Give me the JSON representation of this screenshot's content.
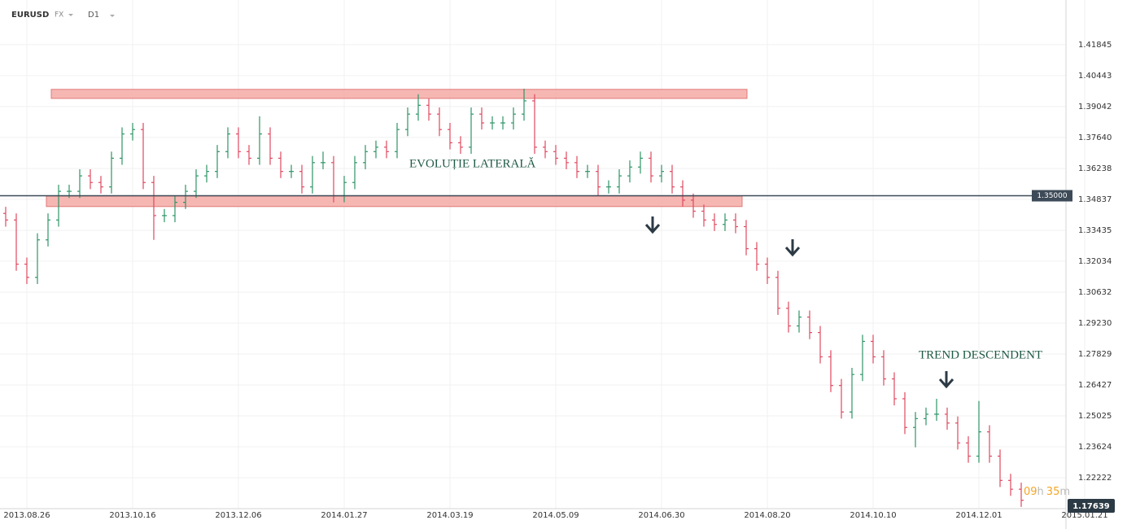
{
  "chart_data": {
    "type": "ohlc",
    "symbol": "EURUSD",
    "market": "FX",
    "timeframe": "D1",
    "categories": [
      null,
      null,
      "2013.08.26",
      null,
      null,
      null,
      null,
      null,
      null,
      null,
      null,
      null,
      "2013.10.16",
      null,
      null,
      null,
      null,
      null,
      null,
      null,
      null,
      null,
      "2013.12.06",
      null,
      null,
      null,
      null,
      null,
      null,
      null,
      null,
      null,
      "2014.01.27",
      null,
      null,
      null,
      null,
      null,
      null,
      null,
      null,
      null,
      "2014.03.19",
      null,
      null,
      null,
      null,
      null,
      null,
      null,
      null,
      null,
      "2014.05.09",
      null,
      null,
      null,
      null,
      null,
      null,
      null,
      null,
      null,
      "2014.06.30",
      null,
      null,
      null,
      null,
      null,
      null,
      null,
      null,
      null,
      "2014.08.20",
      null,
      null,
      null,
      null,
      null,
      null,
      null,
      null,
      null,
      "2014.10.10",
      null,
      null,
      null,
      null,
      null,
      null,
      null,
      null,
      null,
      "2014.12.01",
      null,
      null,
      null,
      null,
      null,
      null,
      null,
      null,
      null,
      "2015.01.21"
    ],
    "open": [
      1.342,
      1.339,
      1.319,
      1.313,
      1.33,
      1.339,
      1.352,
      1.352,
      1.359,
      1.356,
      1.354,
      1.367,
      1.378,
      1.38,
      1.356,
      1.341,
      1.341,
      1.347,
      1.352,
      1.359,
      1.361,
      1.37,
      1.378,
      1.37,
      1.367,
      1.378,
      1.367,
      1.361,
      1.361,
      1.354,
      1.365,
      1.365,
      1.35,
      1.356,
      1.365,
      1.37,
      1.372,
      1.37,
      1.38,
      1.387,
      1.391,
      1.387,
      1.38,
      1.374,
      1.372,
      1.387,
      1.383,
      1.383,
      1.383,
      1.387,
      1.393,
      1.372,
      1.37,
      1.367,
      1.365,
      1.361,
      1.361,
      1.354,
      1.354,
      1.359,
      1.363,
      1.367,
      1.359,
      1.361,
      1.354,
      1.348,
      1.343,
      1.339,
      1.337,
      1.339,
      1.336,
      1.326,
      1.319,
      1.313,
      1.299,
      1.291,
      1.295,
      1.288,
      1.277,
      1.264,
      1.252,
      1.269,
      1.284,
      1.277,
      1.267,
      1.258,
      1.245,
      1.249,
      1.251,
      1.251,
      1.247,
      1.238,
      1.232,
      1.243,
      1.232,
      1.221,
      1.217,
      null,
      null,
      null,
      null,
      null,
      null
    ],
    "high": [
      1.345,
      1.342,
      1.322,
      1.333,
      1.342,
      1.355,
      1.355,
      1.362,
      1.362,
      1.359,
      1.37,
      1.381,
      1.383,
      1.383,
      1.359,
      1.344,
      1.35,
      1.355,
      1.362,
      1.364,
      1.373,
      1.381,
      1.381,
      1.373,
      1.386,
      1.381,
      1.37,
      1.364,
      1.364,
      1.368,
      1.37,
      1.368,
      1.359,
      1.368,
      1.373,
      1.375,
      1.375,
      1.383,
      1.39,
      1.396,
      1.394,
      1.39,
      1.383,
      1.377,
      1.39,
      1.39,
      1.386,
      1.386,
      1.39,
      1.3985,
      1.396,
      1.375,
      1.373,
      1.37,
      1.368,
      1.364,
      1.364,
      1.357,
      1.362,
      1.366,
      1.37,
      1.37,
      1.364,
      1.364,
      1.357,
      1.351,
      1.346,
      1.342,
      1.342,
      1.342,
      1.339,
      1.329,
      1.322,
      1.316,
      1.302,
      1.298,
      1.298,
      1.291,
      1.28,
      1.267,
      1.272,
      1.287,
      1.287,
      1.28,
      1.27,
      1.261,
      1.252,
      1.254,
      1.258,
      1.254,
      1.25,
      1.241,
      1.257,
      1.246,
      1.235,
      1.224,
      1.22,
      null,
      null,
      null,
      null,
      null,
      null
    ],
    "low": [
      1.336,
      1.316,
      1.31,
      1.31,
      1.327,
      1.336,
      1.349,
      1.349,
      1.353,
      1.351,
      1.351,
      1.364,
      1.375,
      1.353,
      1.33,
      1.338,
      1.338,
      1.344,
      1.349,
      1.356,
      1.358,
      1.367,
      1.367,
      1.364,
      1.364,
      1.364,
      1.358,
      1.358,
      1.351,
      1.351,
      1.362,
      1.347,
      1.347,
      1.353,
      1.362,
      1.367,
      1.367,
      1.367,
      1.377,
      1.384,
      1.384,
      1.377,
      1.371,
      1.369,
      1.369,
      1.38,
      1.38,
      1.38,
      1.38,
      1.384,
      1.369,
      1.367,
      1.364,
      1.362,
      1.358,
      1.358,
      1.35,
      1.351,
      1.351,
      1.356,
      1.36,
      1.356,
      1.356,
      1.351,
      1.345,
      1.34,
      1.336,
      1.334,
      1.334,
      1.333,
      1.323,
      1.316,
      1.31,
      1.296,
      1.288,
      1.288,
      1.285,
      1.274,
      1.261,
      1.249,
      1.249,
      1.266,
      1.274,
      1.264,
      1.255,
      1.242,
      1.236,
      1.246,
      1.248,
      1.244,
      1.235,
      1.229,
      1.229,
      1.229,
      1.218,
      1.214,
      1.209,
      null,
      null,
      null,
      null,
      null,
      null
    ],
    "close": [
      1.339,
      1.319,
      1.313,
      1.33,
      1.339,
      1.352,
      1.352,
      1.359,
      1.356,
      1.354,
      1.367,
      1.378,
      1.38,
      1.356,
      1.341,
      1.341,
      1.347,
      1.352,
      1.359,
      1.361,
      1.37,
      1.378,
      1.37,
      1.367,
      1.378,
      1.367,
      1.361,
      1.361,
      1.354,
      1.365,
      1.365,
      1.35,
      1.356,
      1.365,
      1.37,
      1.372,
      1.37,
      1.38,
      1.387,
      1.391,
      1.387,
      1.38,
      1.374,
      1.372,
      1.387,
      1.383,
      1.383,
      1.383,
      1.387,
      1.393,
      1.372,
      1.37,
      1.367,
      1.365,
      1.361,
      1.361,
      1.354,
      1.354,
      1.359,
      1.363,
      1.367,
      1.359,
      1.361,
      1.354,
      1.348,
      1.343,
      1.339,
      1.337,
      1.339,
      1.336,
      1.326,
      1.319,
      1.313,
      1.299,
      1.291,
      1.295,
      1.288,
      1.277,
      1.264,
      1.252,
      1.269,
      1.284,
      1.277,
      1.267,
      1.258,
      1.245,
      1.249,
      1.251,
      1.251,
      1.247,
      1.238,
      1.232,
      1.243,
      1.232,
      1.221,
      1.217,
      1.212,
      null,
      null,
      null,
      null,
      null,
      null
    ],
    "up_color": "#2e9466",
    "down_color": "#e0485f",
    "ylim": [
      1.2082,
      1.4387
    ],
    "yticks": [
      1.41845,
      1.40443,
      {
        "value": 1.39042,
        "label": "1.39042"
      },
      {
        "value": 1.3764,
        "label": "1.37640"
      },
      1.36238,
      1.34837,
      1.33435,
      1.32034,
      1.30632,
      {
        "value": 1.2923,
        "label": "1.29230"
      },
      1.27829,
      1.26427,
      1.25025,
      1.23624,
      1.22222
    ],
    "grid": true,
    "level": {
      "value": 1.35,
      "label": "1.35000"
    },
    "zones": [
      {
        "from": 1.3941,
        "to": 1.3982,
        "color": "#f4aaa6"
      },
      {
        "from": 1.3451,
        "to": 1.3499,
        "color": "#f4aaa6"
      }
    ],
    "annotations": [
      "EVOLUȚIE LATERALĂ",
      "TREND DESCENDENT"
    ],
    "last_price": 1.17639,
    "countdown": {
      "hours": "09",
      "hours_unit": "h",
      "minutes": "35",
      "minutes_unit": "m"
    }
  }
}
